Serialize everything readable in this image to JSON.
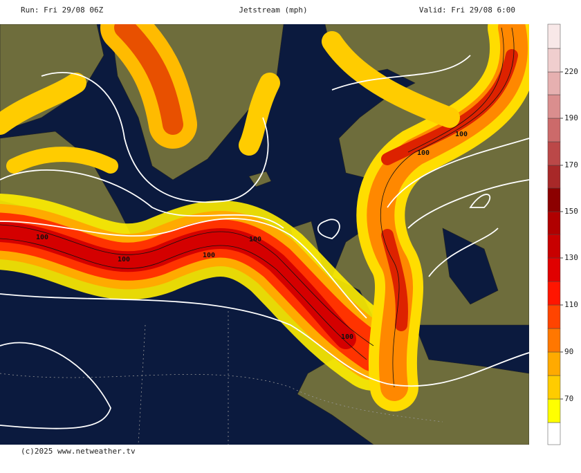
{
  "header": {
    "run": "Run: Fri 29/08 06Z",
    "title": "Jetstream (mph)",
    "valid": "Valid: Fri 29/08 6:00"
  },
  "colorbar": {
    "ticks": [
      70,
      90,
      110,
      130,
      150,
      170,
      190,
      220
    ]
  },
  "contour_labels": [
    "100",
    "100",
    "100",
    "100",
    "100",
    "100",
    "100"
  ],
  "footer": "(c)2025 www.netweather.tv"
}
